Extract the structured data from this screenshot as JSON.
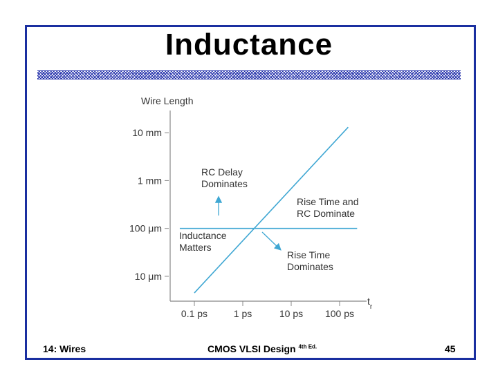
{
  "slide": {
    "title": "Inductance",
    "footer_left": "14: Wires",
    "footer_center": "CMOS VLSI Design",
    "footer_center_sup": "4th Ed.",
    "footer_right": "45",
    "border_color": "#1a2fa0"
  },
  "chart_data": {
    "type": "line",
    "ylabel": "Wire Length",
    "xlabel": "tr",
    "x_scale": "log",
    "y_scale": "log",
    "x_ticks": [
      {
        "value": 0.1,
        "label": "0.1 ps"
      },
      {
        "value": 1,
        "label": "1 ps"
      },
      {
        "value": 10,
        "label": "10 ps"
      },
      {
        "value": 100,
        "label": "100 ps"
      }
    ],
    "y_ticks": [
      {
        "value": 10,
        "label": "10 μm"
      },
      {
        "value": 100,
        "label": "100 μm"
      },
      {
        "value": 1000,
        "label": "1 mm"
      },
      {
        "value": 10000,
        "label": "10 mm"
      }
    ],
    "xlim": [
      0.05,
      300
    ],
    "ylim": [
      3,
      30000
    ],
    "series": [
      {
        "name": "",
        "color": "#3fa7d3",
        "x": [
          0.1,
          150
        ],
        "y": [
          4.5,
          13000
        ]
      },
      {
        "name": "",
        "color": "#3fa7d3",
        "x": [
          0.05,
          230
        ],
        "y": [
          100,
          100
        ]
      }
    ],
    "annotations": [
      {
        "id": "rc-delay",
        "lines": [
          "RC Delay",
          "Dominates"
        ]
      },
      {
        "id": "rise-rc",
        "lines": [
          "Rise Time and",
          "RC Dominate"
        ]
      },
      {
        "id": "inductance",
        "lines": [
          "Inductance",
          "Matters"
        ]
      },
      {
        "id": "rise-time",
        "lines": [
          "Rise Time",
          "Dominates"
        ]
      }
    ]
  }
}
